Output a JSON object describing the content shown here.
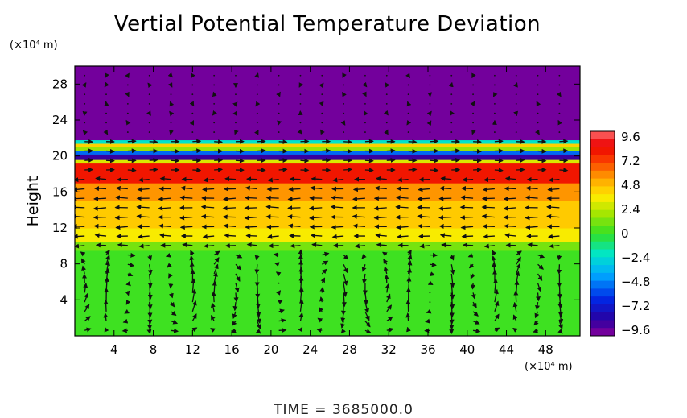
{
  "chart_data": {
    "type": "heatmap",
    "title": "Vertial Potential Temperature Deviation",
    "ylabel": "Height",
    "y_unit": "(×10⁴ m)",
    "x_unit": "(×10⁴ m)",
    "xlim": [
      0,
      51.5
    ],
    "ylim": [
      0,
      30
    ],
    "x_ticks": [
      4,
      8,
      12,
      16,
      20,
      24,
      28,
      32,
      36,
      40,
      44,
      48
    ],
    "y_ticks": [
      4,
      8,
      12,
      16,
      20,
      24,
      28
    ],
    "colorbar": {
      "ticks": [
        9.6,
        7.2,
        4.8,
        2.4,
        0,
        -2.4,
        -4.8,
        -7.2,
        -9.6
      ],
      "range": [
        -10.4,
        10.4
      ]
    },
    "layers": [
      {
        "y": [
          0,
          9.5
        ],
        "value": 0.2
      },
      {
        "y": [
          9.5,
          10.5
        ],
        "value": 1.2
      },
      {
        "y": [
          10.5,
          12
        ],
        "value": 3.6
      },
      {
        "y": [
          12,
          15
        ],
        "value": 4.6
      },
      {
        "y": [
          15,
          17
        ],
        "value": 5.8
      },
      {
        "y": [
          17,
          19.2
        ],
        "value": 8.4
      },
      {
        "y": [
          19.2,
          19.6
        ],
        "value": 3.0
      },
      {
        "y": [
          19.6,
          20.2
        ],
        "value": -9.0
      },
      {
        "y": [
          20.2,
          20.6
        ],
        "value": -5.4
      },
      {
        "y": [
          20.6,
          21.0
        ],
        "value": 1.8
      },
      {
        "y": [
          21.0,
          21.4
        ],
        "value": 4.4
      },
      {
        "y": [
          21.4,
          21.8
        ],
        "value": -2.2
      },
      {
        "y": [
          21.8,
          30
        ],
        "value": -10.0
      }
    ],
    "wind_vectors": "arrow field over the whole domain: mostly horizontal (leftward near 14–17, rightward near 18–20), circulation cells with vertical motion below 10"
  },
  "footer": {
    "time_label": "TIME  =  3685000.0"
  },
  "colors": {
    "negative_max": "#8b009b",
    "positive_max": "#ff6363",
    "zero": "#33e024"
  }
}
